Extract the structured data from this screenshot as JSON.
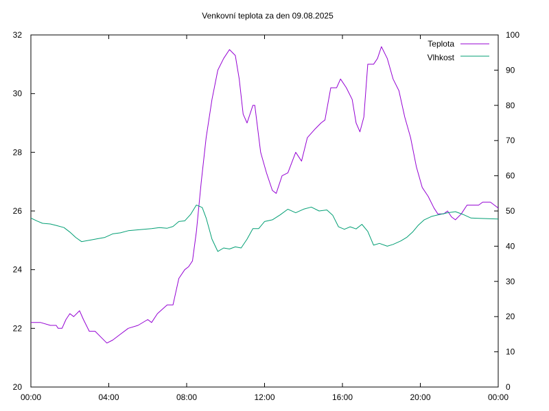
{
  "chart_data": {
    "type": "line",
    "title": "Venkovní teplota za den 09.08.2025",
    "xlabel": "",
    "ylabel": "",
    "y2label": "",
    "x_unit": "hours",
    "xlim": [
      0,
      24
    ],
    "ylim": [
      20,
      32
    ],
    "y2lim": [
      0,
      100
    ],
    "grid": false,
    "legend_position": "top-right",
    "x_ticks": [
      0,
      4,
      8,
      12,
      16,
      20,
      24
    ],
    "x_tick_labels": [
      "00:00",
      "04:00",
      "08:00",
      "12:00",
      "16:00",
      "20:00",
      "00:00"
    ],
    "y_ticks": [
      20,
      22,
      24,
      26,
      28,
      30,
      32
    ],
    "y2_ticks": [
      0,
      10,
      20,
      30,
      40,
      50,
      60,
      70,
      80,
      90,
      100
    ],
    "series": [
      {
        "name": "Teplota",
        "axis": "left",
        "color": "#9400d3",
        "points": [
          [
            0.0,
            22.2
          ],
          [
            0.5,
            22.2
          ],
          [
            1.0,
            22.1
          ],
          [
            1.3,
            22.1
          ],
          [
            1.4,
            22.0
          ],
          [
            1.6,
            22.0
          ],
          [
            1.8,
            22.3
          ],
          [
            2.0,
            22.5
          ],
          [
            2.2,
            22.4
          ],
          [
            2.5,
            22.6
          ],
          [
            2.7,
            22.3
          ],
          [
            3.0,
            21.9
          ],
          [
            3.3,
            21.9
          ],
          [
            3.6,
            21.7
          ],
          [
            3.9,
            21.5
          ],
          [
            4.2,
            21.6
          ],
          [
            4.6,
            21.8
          ],
          [
            5.0,
            22.0
          ],
          [
            5.5,
            22.1
          ],
          [
            6.0,
            22.3
          ],
          [
            6.2,
            22.2
          ],
          [
            6.5,
            22.5
          ],
          [
            7.0,
            22.8
          ],
          [
            7.3,
            22.8
          ],
          [
            7.6,
            23.7
          ],
          [
            7.9,
            24.0
          ],
          [
            8.1,
            24.1
          ],
          [
            8.3,
            24.3
          ],
          [
            8.5,
            25.3
          ],
          [
            8.75,
            27.0
          ],
          [
            9.0,
            28.5
          ],
          [
            9.3,
            29.8
          ],
          [
            9.6,
            30.8
          ],
          [
            9.9,
            31.2
          ],
          [
            10.2,
            31.5
          ],
          [
            10.5,
            31.3
          ],
          [
            10.7,
            30.5
          ],
          [
            10.9,
            29.3
          ],
          [
            11.1,
            29.0
          ],
          [
            11.4,
            29.6
          ],
          [
            11.5,
            29.6
          ],
          [
            11.8,
            28.0
          ],
          [
            12.1,
            27.3
          ],
          [
            12.4,
            26.7
          ],
          [
            12.6,
            26.6
          ],
          [
            12.9,
            27.2
          ],
          [
            13.2,
            27.3
          ],
          [
            13.6,
            28.0
          ],
          [
            13.9,
            27.7
          ],
          [
            14.2,
            28.5
          ],
          [
            14.6,
            28.8
          ],
          [
            14.9,
            29.0
          ],
          [
            15.1,
            29.1
          ],
          [
            15.4,
            30.2
          ],
          [
            15.7,
            30.2
          ],
          [
            15.9,
            30.5
          ],
          [
            16.2,
            30.2
          ],
          [
            16.5,
            29.8
          ],
          [
            16.7,
            29.0
          ],
          [
            16.9,
            28.7
          ],
          [
            17.1,
            29.2
          ],
          [
            17.3,
            31.0
          ],
          [
            17.6,
            31.0
          ],
          [
            17.8,
            31.2
          ],
          [
            18.0,
            31.6
          ],
          [
            18.3,
            31.2
          ],
          [
            18.6,
            30.5
          ],
          [
            18.9,
            30.1
          ],
          [
            19.2,
            29.2
          ],
          [
            19.5,
            28.5
          ],
          [
            19.8,
            27.5
          ],
          [
            20.1,
            26.8
          ],
          [
            20.4,
            26.5
          ],
          [
            20.7,
            26.1
          ],
          [
            20.9,
            25.9
          ],
          [
            21.2,
            25.9
          ],
          [
            21.4,
            26.0
          ],
          [
            21.6,
            25.8
          ],
          [
            21.8,
            25.7
          ],
          [
            22.1,
            25.9
          ],
          [
            22.4,
            26.2
          ],
          [
            22.7,
            26.2
          ],
          [
            23.0,
            26.2
          ],
          [
            23.2,
            26.3
          ],
          [
            23.6,
            26.3
          ],
          [
            23.8,
            26.2
          ],
          [
            24.0,
            26.1
          ]
        ]
      },
      {
        "name": "Vlhkost",
        "axis": "right",
        "color": "#009e73",
        "points": [
          [
            0.0,
            48.0
          ],
          [
            0.3,
            47.2
          ],
          [
            0.6,
            46.5
          ],
          [
            1.0,
            46.3
          ],
          [
            1.3,
            45.9
          ],
          [
            1.7,
            45.3
          ],
          [
            2.0,
            44.0
          ],
          [
            2.3,
            42.5
          ],
          [
            2.6,
            41.3
          ],
          [
            3.0,
            41.7
          ],
          [
            3.4,
            42.1
          ],
          [
            3.8,
            42.5
          ],
          [
            4.2,
            43.5
          ],
          [
            4.6,
            43.8
          ],
          [
            5.0,
            44.4
          ],
          [
            5.4,
            44.6
          ],
          [
            5.8,
            44.8
          ],
          [
            6.2,
            45.0
          ],
          [
            6.6,
            45.3
          ],
          [
            7.0,
            45.1
          ],
          [
            7.3,
            45.6
          ],
          [
            7.6,
            47.0
          ],
          [
            7.9,
            47.2
          ],
          [
            8.2,
            49.0
          ],
          [
            8.5,
            51.7
          ],
          [
            8.8,
            51.0
          ],
          [
            9.0,
            48.0
          ],
          [
            9.3,
            42.0
          ],
          [
            9.6,
            38.5
          ],
          [
            9.9,
            39.5
          ],
          [
            10.2,
            39.2
          ],
          [
            10.5,
            39.8
          ],
          [
            10.8,
            39.5
          ],
          [
            11.1,
            42.0
          ],
          [
            11.4,
            45.0
          ],
          [
            11.7,
            45.0
          ],
          [
            12.0,
            47.0
          ],
          [
            12.4,
            47.5
          ],
          [
            12.8,
            48.9
          ],
          [
            13.2,
            50.5
          ],
          [
            13.6,
            49.5
          ],
          [
            14.0,
            50.5
          ],
          [
            14.4,
            51.1
          ],
          [
            14.8,
            50.0
          ],
          [
            15.2,
            50.3
          ],
          [
            15.5,
            48.8
          ],
          [
            15.8,
            45.5
          ],
          [
            16.1,
            44.8
          ],
          [
            16.4,
            45.5
          ],
          [
            16.7,
            44.9
          ],
          [
            17.0,
            46.2
          ],
          [
            17.3,
            44.2
          ],
          [
            17.6,
            40.3
          ],
          [
            17.9,
            40.8
          ],
          [
            18.3,
            40.0
          ],
          [
            18.6,
            40.5
          ],
          [
            19.0,
            41.5
          ],
          [
            19.3,
            42.5
          ],
          [
            19.6,
            44.0
          ],
          [
            19.9,
            46.0
          ],
          [
            20.2,
            47.5
          ],
          [
            20.6,
            48.5
          ],
          [
            21.0,
            49.0
          ],
          [
            21.4,
            49.5
          ],
          [
            21.8,
            49.8
          ],
          [
            22.2,
            49.0
          ],
          [
            22.6,
            48.0
          ],
          [
            23.0,
            47.9
          ],
          [
            23.5,
            47.8
          ],
          [
            24.0,
            47.7
          ]
        ]
      }
    ]
  }
}
